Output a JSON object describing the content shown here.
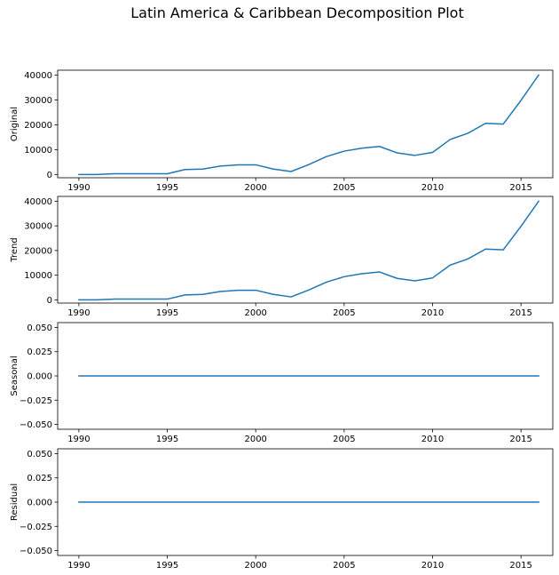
{
  "title": "Latin America & Caribbean Decomposition Plot",
  "chart_data": [
    {
      "type": "line",
      "ylabel": "Original",
      "xlim": [
        1988.8,
        2016.8
      ],
      "ylim": [
        -1300,
        41950
      ],
      "xticks": [
        1990,
        1995,
        2000,
        2005,
        2010,
        2015
      ],
      "xtick_labels": [
        "1990",
        "1995",
        "2000",
        "2005",
        "2010",
        "2015"
      ],
      "yticks": [
        0,
        10000,
        20000,
        30000,
        40000
      ],
      "ytick_labels": [
        "0",
        "10000",
        "20000",
        "30000",
        "40000"
      ],
      "x": [
        1990,
        1991,
        1992,
        1993,
        1994,
        1995,
        1996,
        1997,
        1998,
        1999,
        2000,
        2001,
        2002,
        2003,
        2004,
        2005,
        2006,
        2007,
        2008,
        2009,
        2010,
        2011,
        2012,
        2013,
        2014,
        2015,
        2016
      ],
      "values": [
        0,
        0,
        300,
        300,
        300,
        300,
        2000,
        2200,
        3400,
        3900,
        3900,
        2200,
        1200,
        4000,
        7200,
        9400,
        10600,
        11300,
        8700,
        7700,
        8900,
        14100,
        16600,
        20600,
        20300,
        29800,
        40000
      ]
    },
    {
      "type": "line",
      "ylabel": "Trend",
      "xlim": [
        1988.8,
        2016.8
      ],
      "ylim": [
        -1300,
        41950
      ],
      "xticks": [
        1990,
        1995,
        2000,
        2005,
        2010,
        2015
      ],
      "xtick_labels": [
        "1990",
        "1995",
        "2000",
        "2005",
        "2010",
        "2015"
      ],
      "yticks": [
        0,
        10000,
        20000,
        30000,
        40000
      ],
      "ytick_labels": [
        "0",
        "10000",
        "20000",
        "30000",
        "40000"
      ],
      "x": [
        1990,
        1991,
        1992,
        1993,
        1994,
        1995,
        1996,
        1997,
        1998,
        1999,
        2000,
        2001,
        2002,
        2003,
        2004,
        2005,
        2006,
        2007,
        2008,
        2009,
        2010,
        2011,
        2012,
        2013,
        2014,
        2015,
        2016
      ],
      "values": [
        0,
        0,
        300,
        300,
        300,
        300,
        2000,
        2200,
        3400,
        3900,
        3900,
        2200,
        1200,
        4000,
        7200,
        9400,
        10600,
        11300,
        8700,
        7700,
        8900,
        14100,
        16600,
        20600,
        20300,
        29800,
        40000
      ]
    },
    {
      "type": "line",
      "ylabel": "Seasonal",
      "xlim": [
        1988.8,
        2016.8
      ],
      "ylim": [
        -0.055,
        0.055
      ],
      "xticks": [
        1990,
        1995,
        2000,
        2005,
        2010,
        2015
      ],
      "xtick_labels": [
        "1990",
        "1995",
        "2000",
        "2005",
        "2010",
        "2015"
      ],
      "yticks": [
        -0.05,
        -0.025,
        0,
        0.025,
        0.05
      ],
      "ytick_labels": [
        "−0.050",
        "−0.025",
        "0.000",
        "0.025",
        "0.050"
      ],
      "x": [
        1990,
        1991,
        1992,
        1993,
        1994,
        1995,
        1996,
        1997,
        1998,
        1999,
        2000,
        2001,
        2002,
        2003,
        2004,
        2005,
        2006,
        2007,
        2008,
        2009,
        2010,
        2011,
        2012,
        2013,
        2014,
        2015,
        2016
      ],
      "values": [
        0,
        0,
        0,
        0,
        0,
        0,
        0,
        0,
        0,
        0,
        0,
        0,
        0,
        0,
        0,
        0,
        0,
        0,
        0,
        0,
        0,
        0,
        0,
        0,
        0,
        0,
        0
      ]
    },
    {
      "type": "line",
      "ylabel": "Residual",
      "xlim": [
        1988.8,
        2016.8
      ],
      "ylim": [
        -0.055,
        0.055
      ],
      "xticks": [
        1990,
        1995,
        2000,
        2005,
        2010,
        2015
      ],
      "xtick_labels": [
        "1990",
        "1995",
        "2000",
        "2005",
        "2010",
        "2015"
      ],
      "yticks": [
        -0.05,
        -0.025,
        0,
        0.025,
        0.05
      ],
      "ytick_labels": [
        "−0.050",
        "−0.025",
        "0.000",
        "0.025",
        "0.050"
      ],
      "x": [
        1990,
        1991,
        1992,
        1993,
        1994,
        1995,
        1996,
        1997,
        1998,
        1999,
        2000,
        2001,
        2002,
        2003,
        2004,
        2005,
        2006,
        2007,
        2008,
        2009,
        2010,
        2011,
        2012,
        2013,
        2014,
        2015,
        2016
      ],
      "values": [
        0,
        0,
        0,
        0,
        0,
        0,
        0,
        0,
        0,
        0,
        0,
        0,
        0,
        0,
        0,
        0,
        0,
        0,
        0,
        0,
        0,
        0,
        0,
        0,
        0,
        0,
        0
      ]
    }
  ],
  "colors": {
    "series": "#1f77b4",
    "axes": "#000000",
    "background": "#ffffff"
  }
}
